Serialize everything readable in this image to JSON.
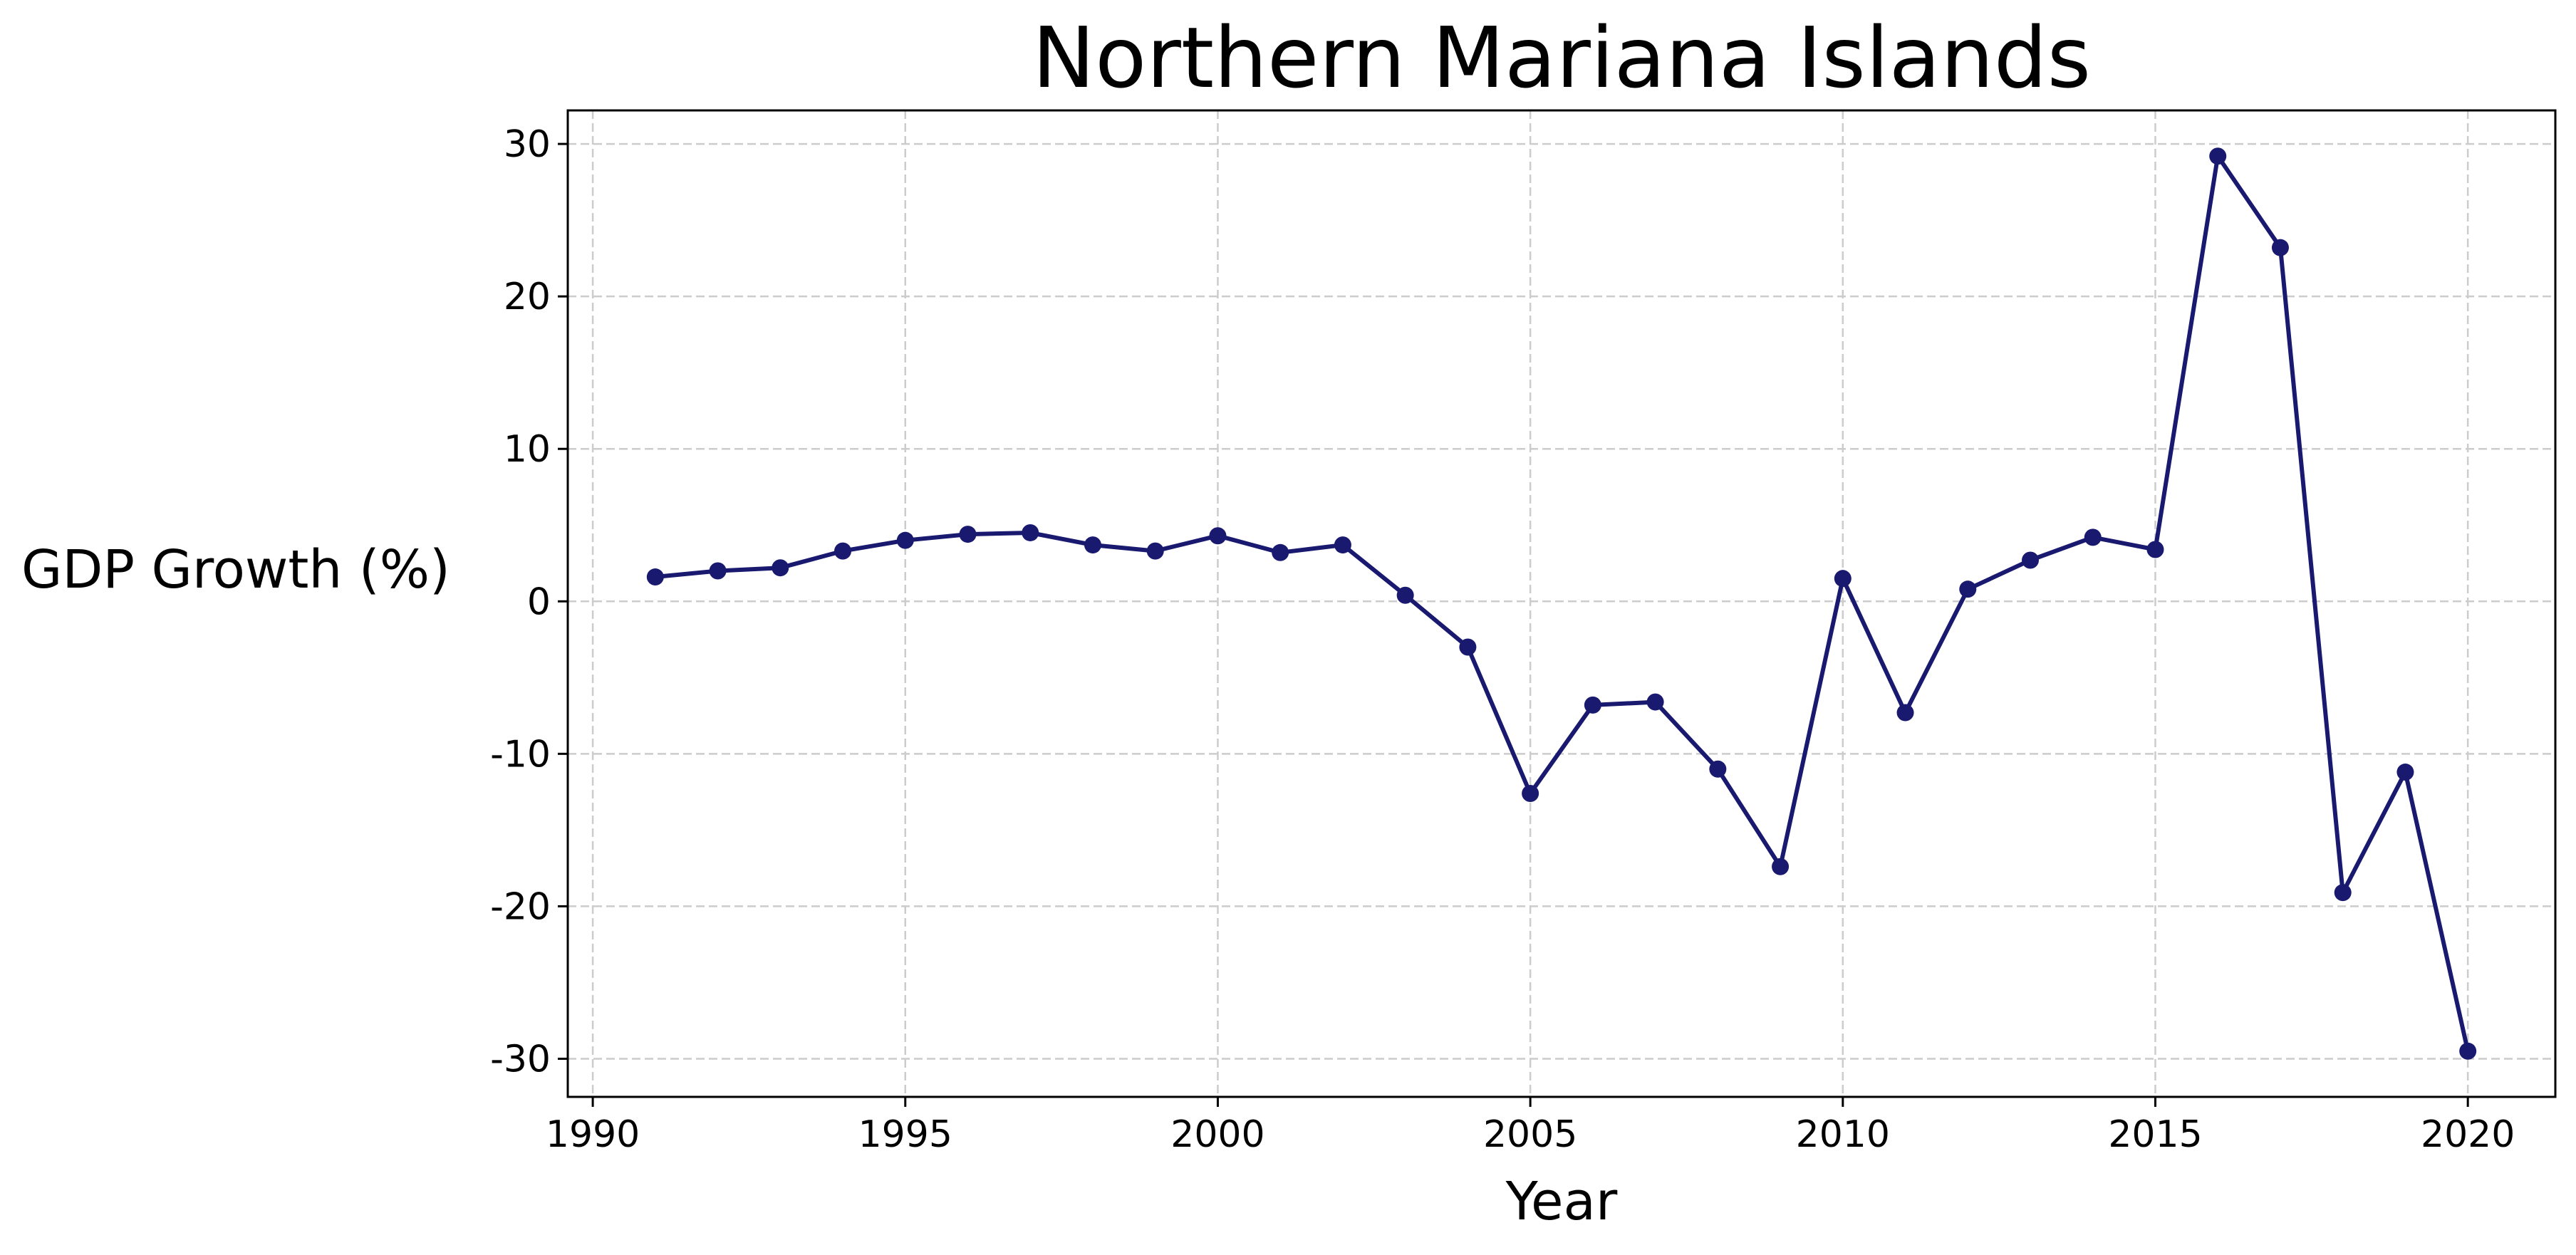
{
  "chart_data": {
    "type": "line",
    "title": "Northern Mariana Islands",
    "xlabel": "Year",
    "ylabel": "GDP Growth (%)",
    "xlim": [
      1989.6,
      2021.4
    ],
    "ylim": [
      -32.5,
      32.2
    ],
    "x_ticks": [
      1990,
      1995,
      2000,
      2005,
      2010,
      2015,
      2020
    ],
    "y_ticks": [
      -30,
      -20,
      -10,
      0,
      10,
      20,
      30
    ],
    "grid": true,
    "series": [
      {
        "x": [
          1991,
          1992,
          1993,
          1994,
          1995,
          1996,
          1997,
          1998,
          1999,
          2000,
          2001,
          2002,
          2003,
          2004,
          2005,
          2006,
          2007,
          2008,
          2009,
          2010,
          2011,
          2012,
          2013,
          2014,
          2015,
          2016,
          2017,
          2018,
          2019,
          2020
        ],
        "y": [
          1.6,
          2.0,
          2.2,
          3.3,
          4.0,
          4.4,
          4.5,
          3.7,
          3.3,
          4.3,
          3.2,
          3.7,
          0.4,
          -3.0,
          -12.6,
          -6.8,
          -6.6,
          -11.0,
          -17.4,
          1.5,
          -7.3,
          0.8,
          2.7,
          4.2,
          3.4,
          29.2,
          23.2,
          -19.1,
          -11.2,
          -29.5
        ]
      }
    ]
  },
  "colors": {
    "line": "#191970",
    "grid": "#cccccc",
    "axes": "#000000"
  }
}
